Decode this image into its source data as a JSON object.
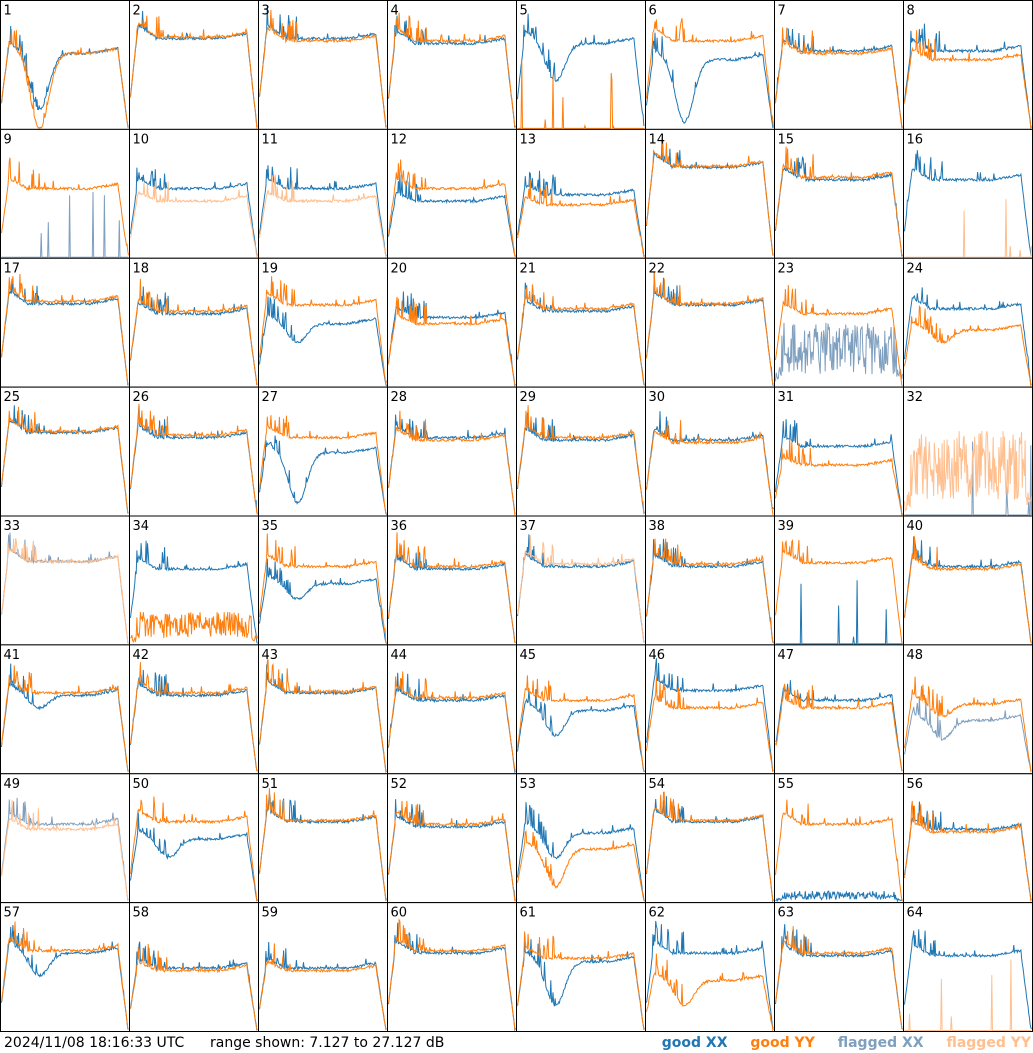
{
  "footer": {
    "timestamp": "2024/11/08 18:16:33 UTC",
    "range_text": "range shown: 7.127 to 27.127 dB"
  },
  "legend": [
    {
      "label": "good XX",
      "color": "#1f77b4"
    },
    {
      "label": "good YY",
      "color": "#ff7f0e"
    },
    {
      "label": "flagged XX",
      "color": "#7f9fbf"
    },
    {
      "label": "flagged YY",
      "color": "#ffbf8f"
    }
  ],
  "chart_data": {
    "type": "line",
    "grid": {
      "rows": 8,
      "cols": 8
    },
    "ylim": [
      7.127,
      27.127
    ],
    "yunit": "dB",
    "colors": {
      "good_xx": "#1f77b4",
      "good_yy": "#ff7f0e",
      "flagged_xx": "#7f9fbf",
      "flagged_yy": "#ffbf8f"
    },
    "panels": [
      {
        "label": "1",
        "xx": {
          "shape": "dip",
          "level": 0.6,
          "dip": 0.45,
          "flagged": false
        },
        "yy": {
          "shape": "dip",
          "level": 0.6,
          "dip": 0.6,
          "flagged": false
        }
      },
      {
        "label": "2",
        "xx": {
          "shape": "flat",
          "level": 0.72,
          "flagged": false
        },
        "yy": {
          "shape": "flat",
          "level": 0.73,
          "flagged": false
        }
      },
      {
        "label": "3",
        "xx": {
          "shape": "flat",
          "level": 0.72,
          "flagged": false
        },
        "yy": {
          "shape": "flat",
          "level": 0.7,
          "flagged": false
        }
      },
      {
        "label": "4",
        "xx": {
          "shape": "flat",
          "level": 0.68,
          "flagged": false
        },
        "yy": {
          "shape": "flat",
          "level": 0.7,
          "flagged": false
        }
      },
      {
        "label": "5",
        "xx": {
          "shape": "dip",
          "level": 0.68,
          "dip": 0.3,
          "flagged": false
        },
        "yy": {
          "shape": "dead",
          "level": 0.0,
          "flagged": false
        }
      },
      {
        "label": "6",
        "xx": {
          "shape": "dip",
          "level": 0.55,
          "dip": 0.5,
          "flagged": false
        },
        "yy": {
          "shape": "flat",
          "level": 0.7,
          "flagged": false
        }
      },
      {
        "label": "7",
        "xx": {
          "shape": "flat",
          "level": 0.62,
          "flagged": false
        },
        "yy": {
          "shape": "flat",
          "level": 0.6,
          "flagged": false
        }
      },
      {
        "label": "8",
        "xx": {
          "shape": "flat",
          "level": 0.62,
          "flagged": false
        },
        "yy": {
          "shape": "flat",
          "level": 0.55,
          "flagged": false
        }
      },
      {
        "label": "9",
        "xx": {
          "shape": "dead",
          "level": 0.05,
          "flagged": true
        },
        "yy": {
          "shape": "flat",
          "level": 0.55,
          "flagged": false
        }
      },
      {
        "label": "10",
        "xx": {
          "shape": "flat",
          "level": 0.55,
          "flagged": false
        },
        "yy": {
          "shape": "flat",
          "level": 0.45,
          "flagged": true
        }
      },
      {
        "label": "11",
        "xx": {
          "shape": "flat",
          "level": 0.55,
          "flagged": false
        },
        "yy": {
          "shape": "flat",
          "level": 0.45,
          "flagged": true
        }
      },
      {
        "label": "12",
        "xx": {
          "shape": "flat",
          "level": 0.45,
          "flagged": false
        },
        "yy": {
          "shape": "flat",
          "level": 0.55,
          "flagged": false
        }
      },
      {
        "label": "13",
        "xx": {
          "shape": "flat",
          "level": 0.5,
          "flagged": false
        },
        "yy": {
          "shape": "flat",
          "level": 0.42,
          "flagged": false
        }
      },
      {
        "label": "14",
        "xx": {
          "shape": "flat",
          "level": 0.72,
          "flagged": false
        },
        "yy": {
          "shape": "flat",
          "level": 0.73,
          "flagged": false
        }
      },
      {
        "label": "15",
        "xx": {
          "shape": "flat",
          "level": 0.62,
          "flagged": false
        },
        "yy": {
          "shape": "flat",
          "level": 0.64,
          "flagged": false
        }
      },
      {
        "label": "16",
        "xx": {
          "shape": "flat",
          "level": 0.62,
          "flagged": false
        },
        "yy": {
          "shape": "dead",
          "level": 0.0,
          "flagged": true
        }
      },
      {
        "label": "17",
        "xx": {
          "shape": "flat",
          "level": 0.66,
          "flagged": false
        },
        "yy": {
          "shape": "flat",
          "level": 0.68,
          "flagged": false
        }
      },
      {
        "label": "18",
        "xx": {
          "shape": "flat",
          "level": 0.58,
          "flagged": false
        },
        "yy": {
          "shape": "flat",
          "level": 0.6,
          "flagged": false
        }
      },
      {
        "label": "19",
        "xx": {
          "shape": "dip",
          "level": 0.5,
          "dip": 0.15,
          "flagged": false
        },
        "yy": {
          "shape": "flat",
          "level": 0.65,
          "flagged": false
        }
      },
      {
        "label": "20",
        "xx": {
          "shape": "flat",
          "level": 0.55,
          "flagged": false
        },
        "yy": {
          "shape": "flat",
          "level": 0.5,
          "flagged": false
        }
      },
      {
        "label": "21",
        "xx": {
          "shape": "flat",
          "level": 0.6,
          "flagged": false
        },
        "yy": {
          "shape": "flat",
          "level": 0.62,
          "flagged": false
        }
      },
      {
        "label": "22",
        "xx": {
          "shape": "flat",
          "level": 0.65,
          "flagged": false
        },
        "yy": {
          "shape": "flat",
          "level": 0.66,
          "flagged": false
        }
      },
      {
        "label": "23",
        "xx": {
          "shape": "noise",
          "level": 0.3,
          "flagged": true
        },
        "yy": {
          "shape": "flat",
          "level": 0.58,
          "flagged": false
        }
      },
      {
        "label": "24",
        "xx": {
          "shape": "flat",
          "level": 0.62,
          "flagged": false
        },
        "yy": {
          "shape": "dip",
          "level": 0.45,
          "dip": 0.1,
          "flagged": false
        }
      },
      {
        "label": "25",
        "xx": {
          "shape": "flat",
          "level": 0.66,
          "flagged": false
        },
        "yy": {
          "shape": "flat",
          "level": 0.67,
          "flagged": false
        }
      },
      {
        "label": "26",
        "xx": {
          "shape": "flat",
          "level": 0.62,
          "flagged": false
        },
        "yy": {
          "shape": "flat",
          "level": 0.64,
          "flagged": false
        }
      },
      {
        "label": "27",
        "xx": {
          "shape": "dip",
          "level": 0.5,
          "dip": 0.4,
          "flagged": false
        },
        "yy": {
          "shape": "flat",
          "level": 0.62,
          "flagged": false
        }
      },
      {
        "label": "28",
        "xx": {
          "shape": "flat",
          "level": 0.62,
          "flagged": false
        },
        "yy": {
          "shape": "flat",
          "level": 0.6,
          "flagged": false
        }
      },
      {
        "label": "29",
        "xx": {
          "shape": "flat",
          "level": 0.6,
          "flagged": false
        },
        "yy": {
          "shape": "flat",
          "level": 0.62,
          "flagged": false
        }
      },
      {
        "label": "30",
        "xx": {
          "shape": "flat",
          "level": 0.6,
          "flagged": false
        },
        "yy": {
          "shape": "flat",
          "level": 0.58,
          "flagged": false
        }
      },
      {
        "label": "31",
        "xx": {
          "shape": "flat",
          "level": 0.55,
          "flagged": false
        },
        "yy": {
          "shape": "flat",
          "level": 0.4,
          "flagged": false
        }
      },
      {
        "label": "32",
        "xx": {
          "shape": "dead",
          "level": 0.0,
          "flagged": true
        },
        "yy": {
          "shape": "noise",
          "level": 0.4,
          "flagged": true
        }
      },
      {
        "label": "33",
        "xx": {
          "shape": "flat",
          "level": 0.66,
          "flagged": true
        },
        "yy": {
          "shape": "flat",
          "level": 0.66,
          "flagged": true
        }
      },
      {
        "label": "34",
        "xx": {
          "shape": "flat",
          "level": 0.6,
          "flagged": false
        },
        "yy": {
          "shape": "noise",
          "level": 0.15,
          "flagged": false
        }
      },
      {
        "label": "35",
        "xx": {
          "shape": "dip",
          "level": 0.48,
          "dip": 0.12,
          "flagged": false
        },
        "yy": {
          "shape": "flat",
          "level": 0.62,
          "flagged": false
        }
      },
      {
        "label": "36",
        "xx": {
          "shape": "flat",
          "level": 0.6,
          "flagged": false
        },
        "yy": {
          "shape": "flat",
          "level": 0.62,
          "flagged": false
        }
      },
      {
        "label": "37",
        "xx": {
          "shape": "flat",
          "level": 0.62,
          "flagged": false
        },
        "yy": {
          "shape": "flat",
          "level": 0.64,
          "flagged": true
        }
      },
      {
        "label": "38",
        "xx": {
          "shape": "flat",
          "level": 0.62,
          "flagged": false
        },
        "yy": {
          "shape": "flat",
          "level": 0.64,
          "flagged": false
        }
      },
      {
        "label": "39",
        "xx": {
          "shape": "dead",
          "level": 0.0,
          "flagged": false
        },
        "yy": {
          "shape": "flat",
          "level": 0.65,
          "flagged": false
        }
      },
      {
        "label": "40",
        "xx": {
          "shape": "flat",
          "level": 0.62,
          "flagged": false
        },
        "yy": {
          "shape": "flat",
          "level": 0.6,
          "flagged": false
        }
      },
      {
        "label": "41",
        "xx": {
          "shape": "dip",
          "level": 0.62,
          "dip": 0.1,
          "flagged": false
        },
        "yy": {
          "shape": "flat",
          "level": 0.64,
          "flagged": false
        }
      },
      {
        "label": "42",
        "xx": {
          "shape": "flat",
          "level": 0.62,
          "flagged": false
        },
        "yy": {
          "shape": "flat",
          "level": 0.64,
          "flagged": false
        }
      },
      {
        "label": "43",
        "xx": {
          "shape": "flat",
          "level": 0.64,
          "flagged": false
        },
        "yy": {
          "shape": "flat",
          "level": 0.65,
          "flagged": false
        }
      },
      {
        "label": "44",
        "xx": {
          "shape": "flat",
          "level": 0.58,
          "flagged": false
        },
        "yy": {
          "shape": "flat",
          "level": 0.6,
          "flagged": false
        }
      },
      {
        "label": "45",
        "xx": {
          "shape": "dip",
          "level": 0.5,
          "dip": 0.2,
          "flagged": false
        },
        "yy": {
          "shape": "flat",
          "level": 0.58,
          "flagged": false
        }
      },
      {
        "label": "46",
        "xx": {
          "shape": "flat",
          "level": 0.66,
          "flagged": false
        },
        "yy": {
          "shape": "flat",
          "level": 0.52,
          "flagged": false
        }
      },
      {
        "label": "47",
        "xx": {
          "shape": "flat",
          "level": 0.58,
          "flagged": false
        },
        "yy": {
          "shape": "flat",
          "level": 0.52,
          "flagged": false
        }
      },
      {
        "label": "48",
        "xx": {
          "shape": "dip",
          "level": 0.42,
          "dip": 0.15,
          "flagged": true
        },
        "yy": {
          "shape": "dip",
          "level": 0.55,
          "dip": 0.1,
          "flagged": false
        }
      },
      {
        "label": "49",
        "xx": {
          "shape": "flat",
          "level": 0.62,
          "flagged": true
        },
        "yy": {
          "shape": "flat",
          "level": 0.58,
          "flagged": true
        }
      },
      {
        "label": "50",
        "xx": {
          "shape": "dip",
          "level": 0.5,
          "dip": 0.15,
          "flagged": false
        },
        "yy": {
          "shape": "flat",
          "level": 0.64,
          "flagged": false
        }
      },
      {
        "label": "51",
        "xx": {
          "shape": "flat",
          "level": 0.64,
          "flagged": false
        },
        "yy": {
          "shape": "flat",
          "level": 0.65,
          "flagged": false
        }
      },
      {
        "label": "52",
        "xx": {
          "shape": "flat",
          "level": 0.6,
          "flagged": false
        },
        "yy": {
          "shape": "flat",
          "level": 0.62,
          "flagged": false
        }
      },
      {
        "label": "53",
        "xx": {
          "shape": "dip",
          "level": 0.55,
          "dip": 0.2,
          "flagged": false
        },
        "yy": {
          "shape": "dip",
          "level": 0.42,
          "dip": 0.3,
          "flagged": false
        }
      },
      {
        "label": "54",
        "xx": {
          "shape": "flat",
          "level": 0.64,
          "flagged": false
        },
        "yy": {
          "shape": "flat",
          "level": 0.65,
          "flagged": false
        }
      },
      {
        "label": "55",
        "xx": {
          "shape": "noise",
          "level": 0.05,
          "flagged": false
        },
        "yy": {
          "shape": "flat",
          "level": 0.62,
          "flagged": false
        }
      },
      {
        "label": "56",
        "xx": {
          "shape": "flat",
          "level": 0.58,
          "flagged": false
        },
        "yy": {
          "shape": "flat",
          "level": 0.56,
          "flagged": false
        }
      },
      {
        "label": "57",
        "xx": {
          "shape": "dip",
          "level": 0.62,
          "dip": 0.18,
          "flagged": false
        },
        "yy": {
          "shape": "flat",
          "level": 0.64,
          "flagged": false
        }
      },
      {
        "label": "58",
        "xx": {
          "shape": "flat",
          "level": 0.5,
          "flagged": false
        },
        "yy": {
          "shape": "flat",
          "level": 0.48,
          "flagged": false
        }
      },
      {
        "label": "59",
        "xx": {
          "shape": "flat",
          "level": 0.5,
          "flagged": false
        },
        "yy": {
          "shape": "flat",
          "level": 0.48,
          "flagged": false
        }
      },
      {
        "label": "60",
        "xx": {
          "shape": "flat",
          "level": 0.62,
          "flagged": false
        },
        "yy": {
          "shape": "flat",
          "level": 0.64,
          "flagged": false
        }
      },
      {
        "label": "61",
        "xx": {
          "shape": "dip",
          "level": 0.55,
          "dip": 0.35,
          "flagged": false
        },
        "yy": {
          "shape": "flat",
          "level": 0.58,
          "flagged": false
        }
      },
      {
        "label": "62",
        "xx": {
          "shape": "flat",
          "level": 0.62,
          "flagged": false
        },
        "yy": {
          "shape": "dip",
          "level": 0.4,
          "dip": 0.2,
          "flagged": false
        }
      },
      {
        "label": "63",
        "xx": {
          "shape": "flat",
          "level": 0.6,
          "flagged": false
        },
        "yy": {
          "shape": "flat",
          "level": 0.62,
          "flagged": false
        }
      },
      {
        "label": "64",
        "xx": {
          "shape": "flat",
          "level": 0.6,
          "flagged": false
        },
        "yy": {
          "shape": "dead",
          "level": 0.0,
          "flagged": true
        }
      }
    ]
  }
}
